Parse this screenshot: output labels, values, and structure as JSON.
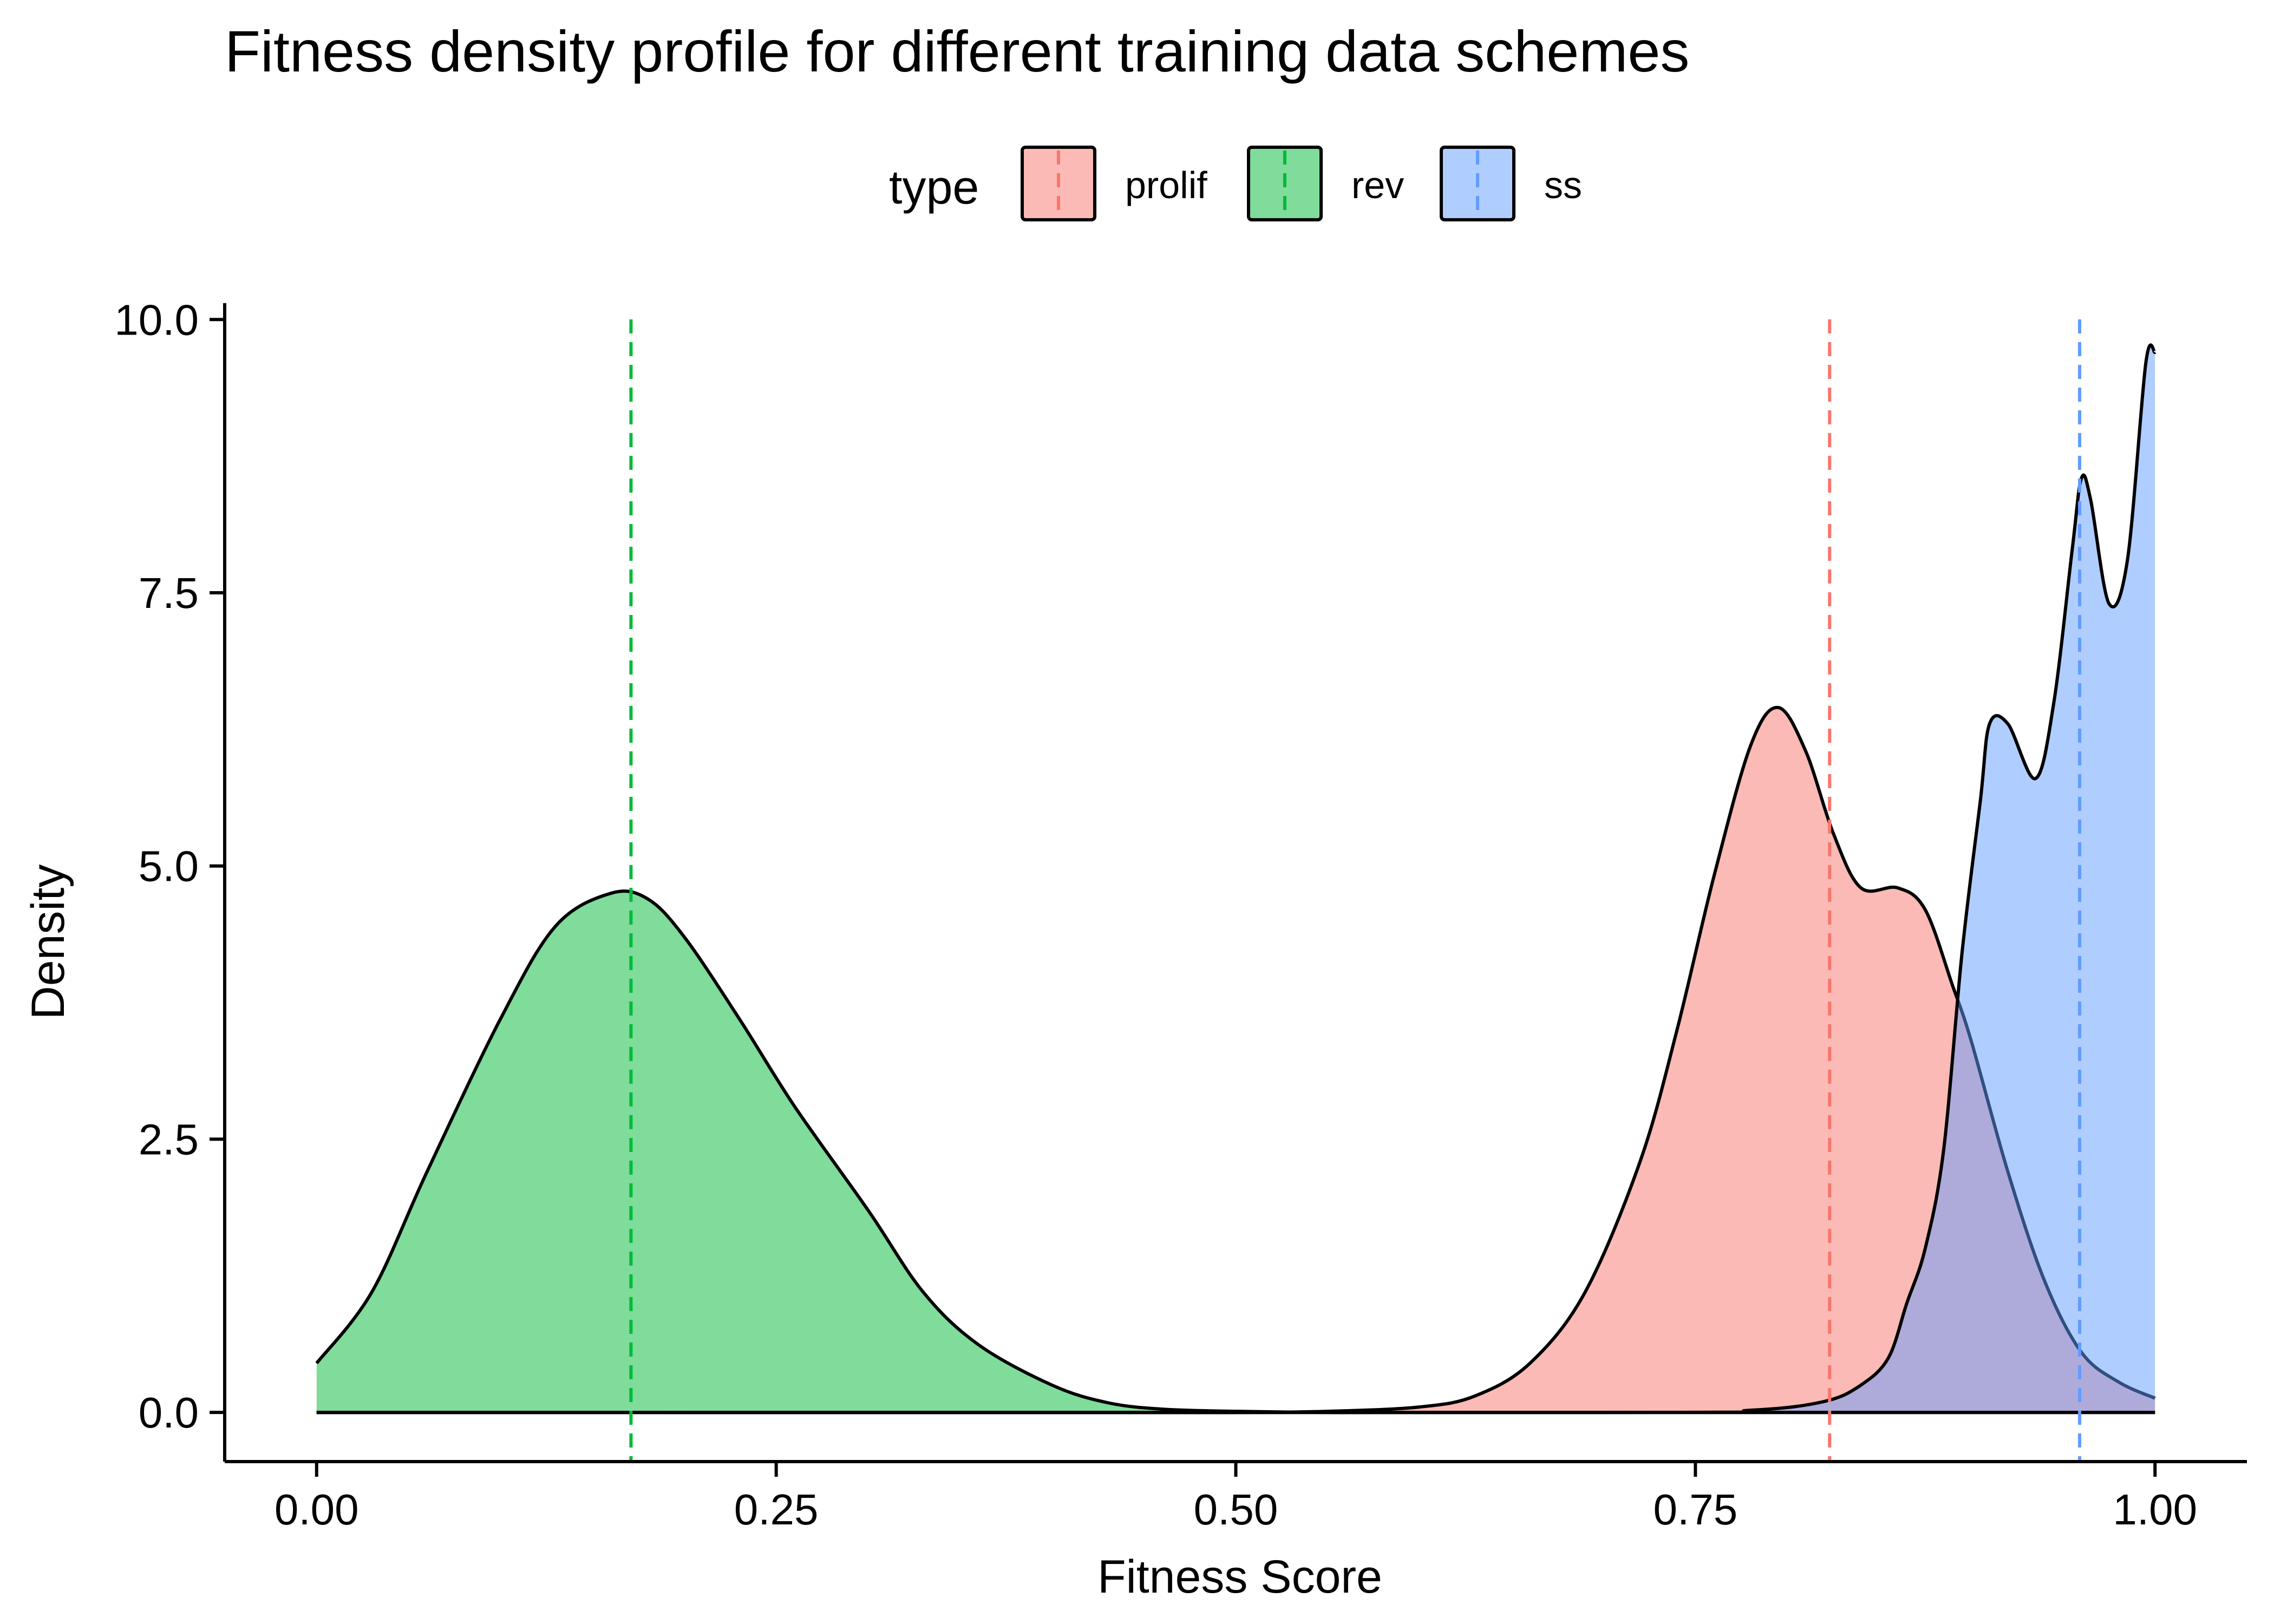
{
  "chart_data": {
    "type": "area",
    "title": "Fitness density profile for different training data schemes",
    "xlabel": "Fitness Score",
    "ylabel": "Density",
    "xlim": [
      -0.05,
      1.05
    ],
    "ylim": [
      -0.45,
      10.15
    ],
    "x_ticks": [
      0.0,
      0.25,
      0.5,
      0.75,
      1.0
    ],
    "x_tick_labels": [
      "0.00",
      "0.25",
      "0.50",
      "0.75",
      "1.00"
    ],
    "y_ticks": [
      0.0,
      2.5,
      5.0,
      7.5,
      10.0
    ],
    "y_tick_labels": [
      "0.0",
      "2.5",
      "5.0",
      "7.5",
      "10.0"
    ],
    "grid": false,
    "legend": {
      "title": "type",
      "placement": "top",
      "entries": [
        "prolif",
        "rev",
        "ss"
      ]
    },
    "series": [
      {
        "name": "prolif",
        "color": "#F8766D",
        "mean": 0.823,
        "x": [
          0.0,
          0.45,
          0.5,
          0.55,
          0.6,
          0.63,
          0.66,
          0.69,
          0.72,
          0.74,
          0.76,
          0.78,
          0.795,
          0.81,
          0.825,
          0.84,
          0.86,
          0.875,
          0.89,
          0.9,
          0.92,
          0.94,
          0.96,
          0.98,
          1.0
        ],
        "y": [
          0.0,
          0.0,
          0.0,
          0.01,
          0.05,
          0.15,
          0.45,
          1.1,
          2.3,
          3.5,
          4.9,
          6.1,
          6.45,
          6.05,
          5.3,
          4.8,
          4.8,
          4.6,
          3.9,
          3.4,
          2.2,
          1.2,
          0.55,
          0.28,
          0.13
        ]
      },
      {
        "name": "rev",
        "color": "#00BA38",
        "mean": 0.171,
        "x": [
          0.0,
          0.03,
          0.06,
          0.1,
          0.13,
          0.16,
          0.18,
          0.2,
          0.23,
          0.26,
          0.3,
          0.33,
          0.36,
          0.4,
          0.43,
          0.46,
          0.5,
          0.55,
          0.6,
          1.0
        ],
        "y": [
          0.45,
          1.1,
          2.2,
          3.6,
          4.45,
          4.75,
          4.7,
          4.35,
          3.6,
          2.8,
          1.85,
          1.1,
          0.62,
          0.25,
          0.09,
          0.03,
          0.01,
          0.0,
          0.0,
          0.0
        ]
      },
      {
        "name": "ss",
        "color": "#619CFF",
        "mean": 0.959,
        "x": [
          0.0,
          0.7,
          0.78,
          0.82,
          0.84,
          0.855,
          0.865,
          0.875,
          0.885,
          0.895,
          0.905,
          0.91,
          0.92,
          0.935,
          0.945,
          0.955,
          0.96,
          0.965,
          0.975,
          0.985,
          0.995,
          1.0
        ],
        "y": [
          0.0,
          0.0,
          0.02,
          0.1,
          0.25,
          0.5,
          1.0,
          1.5,
          2.4,
          4.2,
          5.6,
          6.3,
          6.3,
          5.8,
          6.5,
          7.9,
          8.55,
          8.35,
          7.4,
          7.8,
          9.6,
          9.7
        ]
      }
    ]
  }
}
